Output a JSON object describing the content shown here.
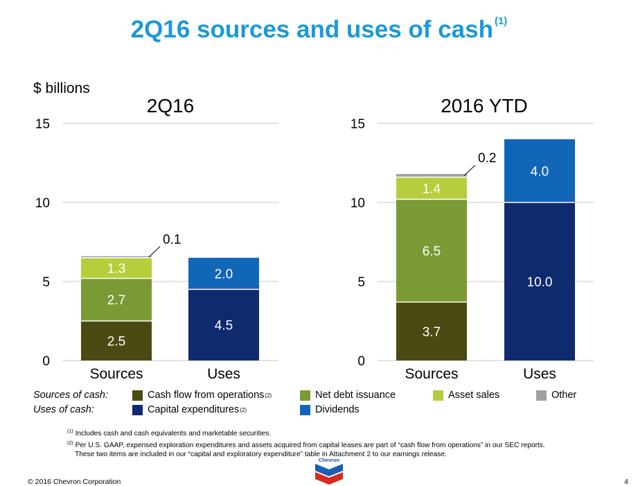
{
  "title": "2Q16 sources and uses of cash",
  "title_footnote": "(1)",
  "units": "$ billions",
  "colors": {
    "title": "#1a9ad6",
    "cash_flow_from_operations": "#4a4a12",
    "net_debt_issuance": "#7a9a35",
    "asset_sales": "#b5cf3c",
    "other": "#a0a0a0",
    "capital_expenditures": "#102a6e",
    "dividends": "#1166b8"
  },
  "legend": {
    "sources_label": "Sources of cash:",
    "uses_label": "Uses of cash:",
    "items": [
      {
        "key": "cash_flow_from_operations",
        "label": "Cash flow from operations",
        "sup": "(2)"
      },
      {
        "key": "net_debt_issuance",
        "label": "Net debt issuance",
        "sup": ""
      },
      {
        "key": "asset_sales",
        "label": "Asset sales",
        "sup": ""
      },
      {
        "key": "other",
        "label": "Other",
        "sup": ""
      },
      {
        "key": "capital_expenditures",
        "label": "Capital expenditures",
        "sup": "(2)"
      },
      {
        "key": "dividends",
        "label": "Dividends",
        "sup": ""
      }
    ]
  },
  "chart_data": [
    {
      "type": "bar",
      "stacked": true,
      "title": "2Q16",
      "ylabel": "$ billions",
      "ylim": [
        0,
        15
      ],
      "yticks": [
        0,
        5,
        10,
        15
      ],
      "grid": true,
      "categories": [
        "Sources",
        "Uses"
      ],
      "series": [
        {
          "name": "Cash flow from operations",
          "key": "cash_flow_from_operations",
          "values": [
            2.5,
            0
          ],
          "labels": [
            "2.5",
            ""
          ]
        },
        {
          "name": "Net debt issuance",
          "key": "net_debt_issuance",
          "values": [
            2.7,
            0
          ],
          "labels": [
            "2.7",
            ""
          ]
        },
        {
          "name": "Asset sales",
          "key": "asset_sales",
          "values": [
            1.3,
            0
          ],
          "labels": [
            "1.3",
            ""
          ]
        },
        {
          "name": "Other",
          "key": "other",
          "values": [
            0.1,
            0
          ],
          "labels": [
            "",
            ""
          ],
          "callout": "0.1"
        },
        {
          "name": "Capital expenditures",
          "key": "capital_expenditures",
          "values": [
            0,
            4.5
          ],
          "labels": [
            "",
            "4.5"
          ]
        },
        {
          "name": "Dividends",
          "key": "dividends",
          "values": [
            0,
            2.0
          ],
          "labels": [
            "",
            "2.0"
          ]
        }
      ]
    },
    {
      "type": "bar",
      "stacked": true,
      "title": "2016 YTD",
      "ylim": [
        0,
        15
      ],
      "yticks": [
        0,
        5,
        10,
        15
      ],
      "grid": true,
      "categories": [
        "Sources",
        "Uses"
      ],
      "series": [
        {
          "name": "Cash flow from operations",
          "key": "cash_flow_from_operations",
          "values": [
            3.7,
            0
          ],
          "labels": [
            "3.7",
            ""
          ]
        },
        {
          "name": "Net debt issuance",
          "key": "net_debt_issuance",
          "values": [
            6.5,
            0
          ],
          "labels": [
            "6.5",
            ""
          ]
        },
        {
          "name": "Asset sales",
          "key": "asset_sales",
          "values": [
            1.4,
            0
          ],
          "labels": [
            "1.4",
            ""
          ]
        },
        {
          "name": "Other",
          "key": "other",
          "values": [
            0.2,
            0
          ],
          "labels": [
            "",
            ""
          ],
          "callout": "0.2"
        },
        {
          "name": "Capital expenditures",
          "key": "capital_expenditures",
          "values": [
            0,
            10.0
          ],
          "labels": [
            "",
            "10.0"
          ]
        },
        {
          "name": "Dividends",
          "key": "dividends",
          "values": [
            0,
            4.0
          ],
          "labels": [
            "",
            "4.0"
          ]
        }
      ]
    }
  ],
  "footnotes": [
    {
      "marker": "(1)",
      "text": "Includes cash and cash equivalents and marketable securities."
    },
    {
      "marker": "(2)",
      "text": "Per U.S. GAAP, expensed exploration expenditures and assets acquired from capital leases are part of “cash flow from operations” in our SEC reports.",
      "continuation": "These two items are included in our “capital and exploratory expenditure” table in Attachment 2 to our earnings release."
    }
  ],
  "logo_text": "Chevron",
  "copyright": "© 2016 Chevron Corporation",
  "page_number": "4"
}
